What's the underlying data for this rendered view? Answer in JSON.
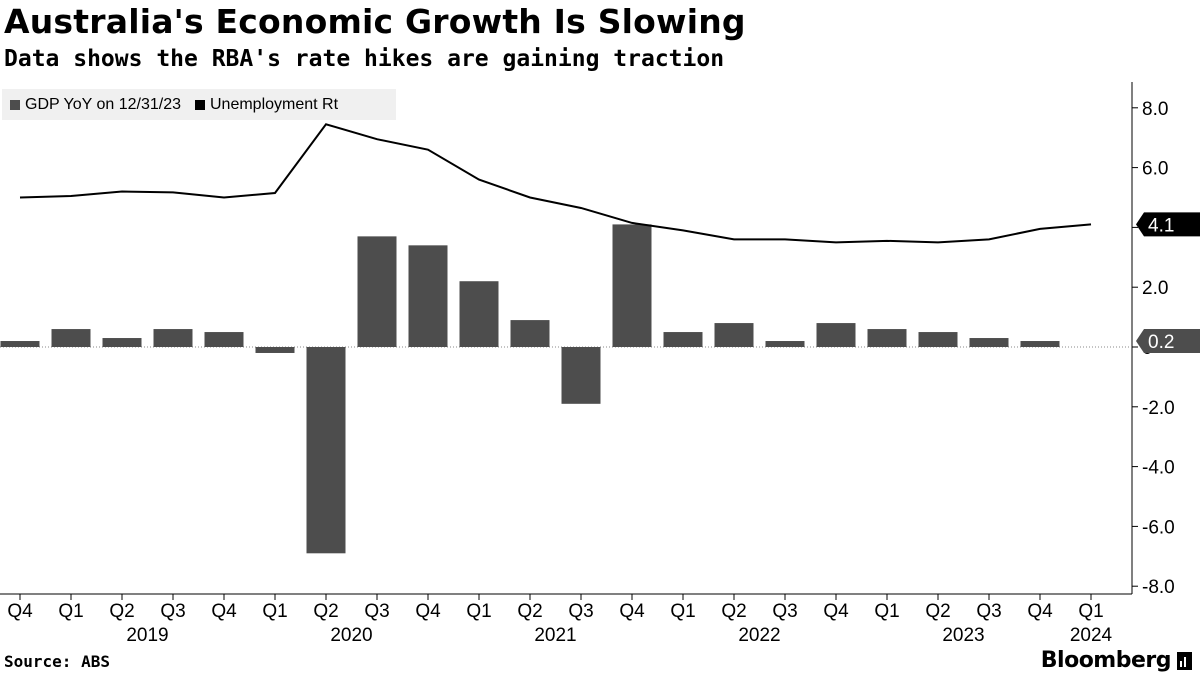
{
  "header": {
    "title": "Australia's Economic Growth Is Slowing",
    "subtitle": "Data shows the RBA's rate hikes are gaining traction"
  },
  "footer": {
    "source": "Source: ABS",
    "brand": "Bloomberg"
  },
  "colors": {
    "bar": "#4d4d4d",
    "line": "#000000",
    "legend_bg": "#f0f0f0",
    "axis": "#000000"
  },
  "chart_data": {
    "type": "bar",
    "title": "Australia's Economic Growth Is Slowing",
    "subtitle": "Data shows the RBA's rate hikes are gaining traction",
    "categories": [
      "Q4",
      "Q1",
      "Q2",
      "Q3",
      "Q4",
      "Q1",
      "Q2",
      "Q3",
      "Q4",
      "Q1",
      "Q2",
      "Q3",
      "Q4",
      "Q1",
      "Q2",
      "Q3",
      "Q4",
      "Q1",
      "Q2",
      "Q3",
      "Q4",
      "Q1"
    ],
    "year_labels": [
      {
        "label": "2019",
        "index": 2
      },
      {
        "label": "2020",
        "index": 6
      },
      {
        "label": "2021",
        "index": 10
      },
      {
        "label": "2022",
        "index": 14
      },
      {
        "label": "2023",
        "index": 18
      },
      {
        "label": "2024",
        "index": 21
      }
    ],
    "series": [
      {
        "name": "GDP YoY on 12/31/23",
        "type": "bar",
        "color": "#4d4d4d",
        "values": [
          0.2,
          0.6,
          0.3,
          0.6,
          0.5,
          -0.2,
          -6.9,
          3.7,
          3.4,
          2.2,
          0.9,
          -1.9,
          4.1,
          0.5,
          0.8,
          0.2,
          0.8,
          0.6,
          0.5,
          0.3,
          0.2,
          null
        ]
      },
      {
        "name": "Unemployment Rt",
        "type": "line",
        "color": "#000000",
        "values": [
          5.0,
          5.05,
          5.2,
          5.17,
          5.0,
          5.15,
          7.45,
          6.95,
          6.6,
          5.6,
          5.0,
          4.65,
          4.15,
          3.9,
          3.6,
          3.6,
          3.5,
          3.55,
          3.5,
          3.6,
          3.95,
          4.1
        ]
      }
    ],
    "y_axis": {
      "position": "right",
      "ylim": [
        -8.0,
        9.0
      ],
      "ticks": [
        "8.0",
        "6.0",
        "4.0",
        "2.0",
        "0",
        "-2.0",
        "-4.0",
        "-6.0",
        "-8.0"
      ],
      "tick_values": [
        8,
        6,
        4,
        2,
        0,
        -2,
        -4,
        -6,
        -8
      ]
    },
    "value_labels": [
      {
        "text": "4.1",
        "value": 4.1
      },
      {
        "text": "0.2",
        "value": 0.2
      }
    ],
    "legend": "top-left",
    "grid": false,
    "xlabel": "",
    "ylabel": ""
  }
}
